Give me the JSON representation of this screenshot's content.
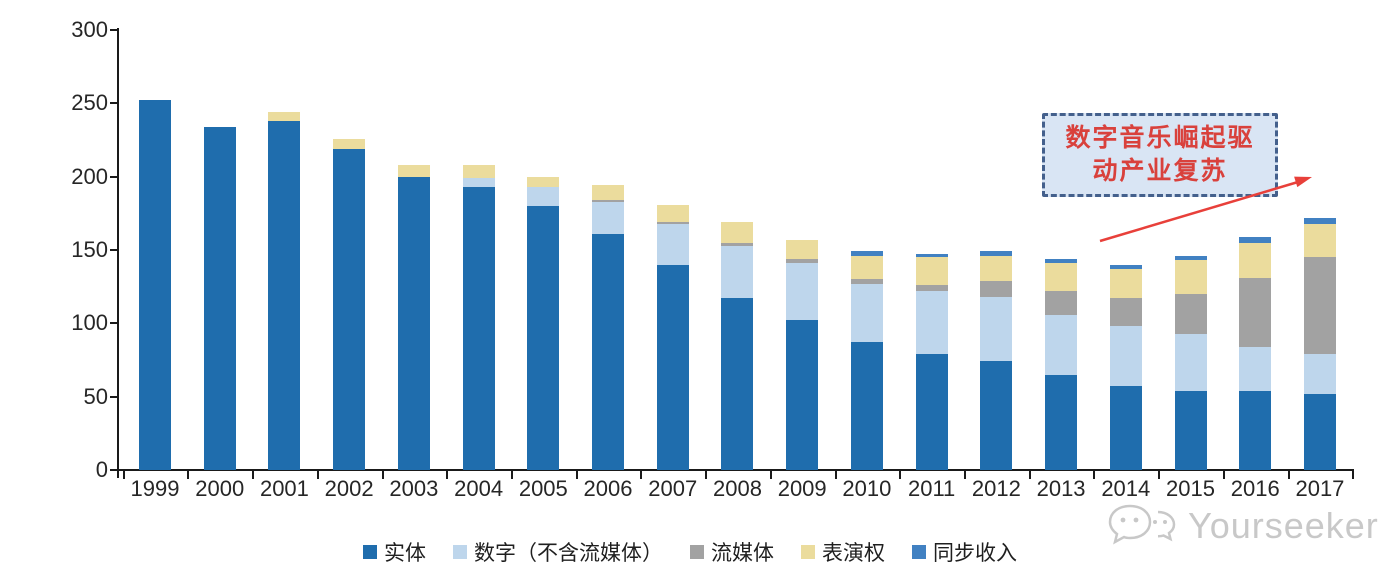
{
  "chart_data": {
    "type": "bar",
    "stacked": true,
    "title": "",
    "xlabel": "",
    "ylabel": "",
    "categories": [
      "1999",
      "2000",
      "2001",
      "2002",
      "2003",
      "2004",
      "2005",
      "2006",
      "2007",
      "2008",
      "2009",
      "2010",
      "2011",
      "2012",
      "2013",
      "2014",
      "2015",
      "2016",
      "2017"
    ],
    "series": [
      {
        "key": "physical",
        "name": "实体",
        "color": "#1f6dad",
        "values": [
          252,
          234,
          238,
          219,
          200,
          193,
          180,
          161,
          140,
          117,
          102,
          87,
          79,
          74,
          65,
          57,
          54,
          54,
          52
        ]
      },
      {
        "key": "digital-ex-streaming",
        "name": "数字（不含流媒体）",
        "color": "#bed6ec",
        "values": [
          0,
          0,
          0,
          0,
          0,
          6,
          13,
          22,
          28,
          36,
          39,
          40,
          43,
          44,
          41,
          41,
          39,
          30,
          27
        ]
      },
      {
        "key": "streaming",
        "name": "流媒体",
        "color": "#a2a2a2",
        "values": [
          0,
          0,
          0,
          0,
          0,
          0,
          0,
          1,
          1,
          2,
          3,
          3,
          4,
          11,
          16,
          19,
          27,
          47,
          66
        ]
      },
      {
        "key": "performance-rights",
        "name": "表演权",
        "color": "#ebdc9d",
        "values": [
          0,
          0,
          6,
          7,
          8,
          9,
          7,
          10,
          12,
          14,
          13,
          16,
          19,
          17,
          19,
          20,
          23,
          24,
          23
        ]
      },
      {
        "key": "sync",
        "name": "同步收入",
        "color": "#4181c2",
        "values": [
          0,
          0,
          0,
          0,
          0,
          0,
          0,
          0,
          0,
          0,
          0,
          3,
          2,
          3,
          3,
          3,
          3,
          4,
          4
        ]
      }
    ],
    "ylim": [
      0,
      300
    ],
    "ytick_step": 50,
    "ytick_labels": [
      "0",
      "50",
      "100",
      "150",
      "200",
      "250",
      "300"
    ],
    "grid": false,
    "legend_position": "bottom"
  },
  "annotation": {
    "line1": "数字音乐崛起驱",
    "line2": "动产业复苏",
    "text_color": "#d9413c",
    "border_color": "#44608c",
    "fill_color": "#d9e5f4",
    "arrow_color": "#e8403a"
  },
  "watermark": {
    "text": "Yourseeker",
    "icon": "chat-bubbles-icon",
    "color": "#c8c8c8"
  },
  "axis": {
    "line_color": "#1a1a1a",
    "label_color": "#262626"
  }
}
